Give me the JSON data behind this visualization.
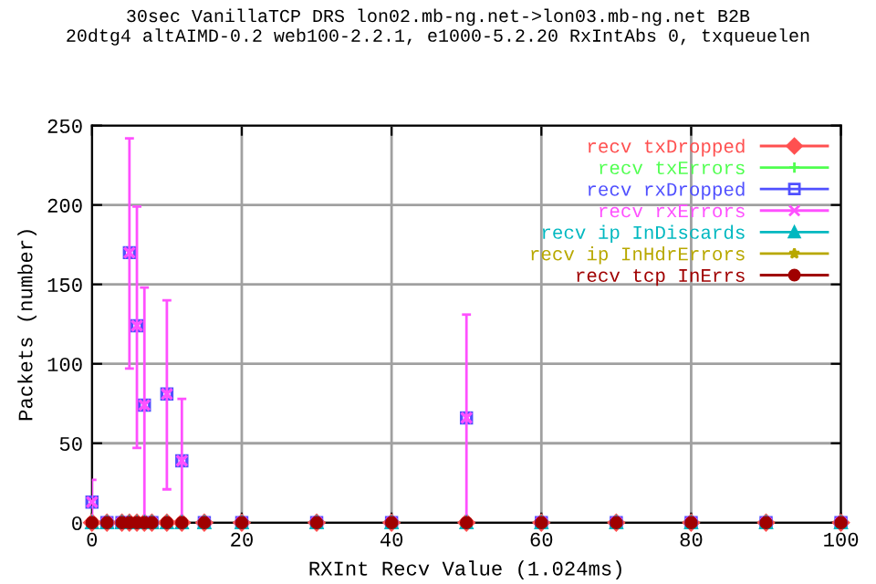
{
  "chart_data": {
    "type": "scatter",
    "title": "30sec VanillaTCP DRS lon02.mb-ng.net->lon03.mb-ng.net B2B\n20dtg4 altAIMD-0.2 web100-2.2.1, e1000-5.2.20 RxIntAbs 0, txqueuelen",
    "xlabel": "RXInt Recv Value (1.024ms)",
    "ylabel": "Packets (number)",
    "x": [
      0,
      2,
      4,
      5,
      6,
      7,
      8,
      10,
      12,
      15,
      20,
      30,
      40,
      50,
      60,
      70,
      80,
      90,
      100
    ],
    "series": [
      {
        "name": "recv txDropped",
        "color": "#ff5050",
        "marker": "diamond",
        "values": [
          0,
          0,
          0,
          0,
          0,
          0,
          0,
          0,
          0,
          0,
          0,
          0,
          0,
          0,
          0,
          0,
          0,
          0,
          0
        ]
      },
      {
        "name": "recv txErrors",
        "color": "#50ff50",
        "marker": "plus",
        "values": [
          null,
          null,
          null,
          null,
          null,
          null,
          null,
          null,
          null,
          null,
          null,
          null,
          null,
          null,
          null,
          null,
          null,
          null,
          null
        ]
      },
      {
        "name": "recv rxDropped",
        "color": "#5050ff",
        "marker": "square",
        "values": [
          13,
          0,
          0,
          170,
          124,
          74,
          0,
          81,
          39,
          0,
          0,
          0,
          0,
          66,
          0,
          0,
          0,
          0,
          0
        ]
      },
      {
        "name": "recv rxErrors",
        "color": "#ff50ff",
        "marker": "cross",
        "values": [
          13,
          0,
          0,
          170,
          124,
          74,
          0,
          81,
          39,
          0,
          0,
          0,
          0,
          66,
          0,
          0,
          0,
          0,
          0
        ],
        "errors": [
          [
            0,
            27
          ],
          null,
          null,
          [
            97,
            242
          ],
          [
            47,
            199
          ],
          [
            0,
            148
          ],
          null,
          [
            21,
            140
          ],
          [
            0,
            78
          ],
          null,
          null,
          null,
          null,
          [
            0,
            131
          ],
          null,
          null,
          null,
          null,
          null
        ]
      },
      {
        "name": "recv ip InDiscards",
        "color": "#00b8c0",
        "marker": "triangle",
        "values": [
          0,
          0,
          0,
          0,
          0,
          0,
          0,
          0,
          0,
          0,
          0,
          0,
          0,
          0,
          0,
          0,
          0,
          0,
          0
        ]
      },
      {
        "name": "recv ip InHdrErrors",
        "color": "#b8a800",
        "marker": "star",
        "values": [
          null,
          null,
          null,
          null,
          null,
          null,
          null,
          null,
          null,
          null,
          null,
          null,
          null,
          null,
          null,
          null,
          null,
          null,
          null
        ]
      },
      {
        "name": "recv tcp InErrs",
        "color": "#a00000",
        "marker": "circle",
        "values": [
          0,
          0,
          0,
          0,
          0,
          0,
          0,
          0,
          0,
          0,
          0,
          0,
          0,
          0,
          0,
          0,
          0,
          0,
          0
        ]
      }
    ],
    "xlim": [
      0,
      100
    ],
    "xticks": [
      0,
      20,
      40,
      60,
      80,
      100
    ],
    "ylim": [
      0,
      250
    ],
    "yticks": [
      0,
      50,
      100,
      150,
      200,
      250
    ],
    "grid": true,
    "legend": "top right"
  }
}
